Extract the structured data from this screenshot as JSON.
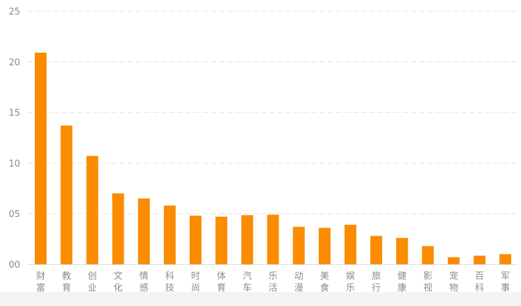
{
  "colors": {
    "bar": "#fb8c00",
    "grid": "#e3e3e3",
    "axis": "#dddddd",
    "tick_text": "#8a8a8a"
  },
  "chart_data": {
    "type": "bar",
    "categories": [
      "财富",
      "教育",
      "创业",
      "文化",
      "情感",
      "科技",
      "时尚",
      "体育",
      "汽车",
      "乐活",
      "动漫",
      "美食",
      "娱乐",
      "旅行",
      "健康",
      "影视",
      "宠物",
      "百科",
      "军事"
    ],
    "series": [
      {
        "values": [
          20.9,
          13.7,
          10.7,
          7.0,
          6.5,
          5.8,
          4.8,
          4.7,
          4.85,
          4.9,
          3.7,
          3.6,
          3.9,
          2.8,
          2.6,
          1.8,
          0.7,
          0.85,
          1.0
        ]
      }
    ],
    "y_ticks": [
      0,
      5,
      10,
      15,
      20,
      25
    ],
    "y_tick_labels": [
      "00",
      "05",
      "10",
      "15",
      "20",
      "25"
    ],
    "ylim": [
      0,
      25
    ],
    "grid": true,
    "grid_style": "dashed",
    "legend": "none"
  }
}
